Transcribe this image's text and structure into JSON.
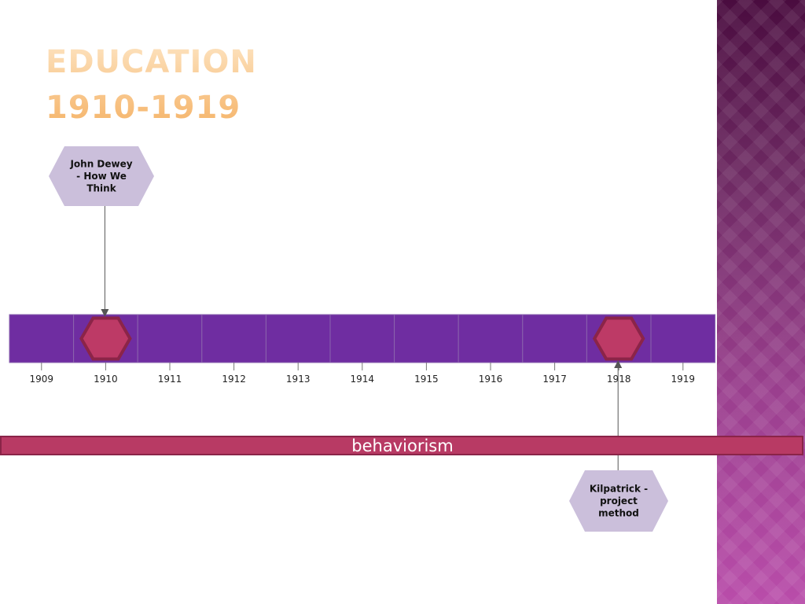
{
  "title": {
    "line1": "EDUCATION",
    "line2": "1910-1919"
  },
  "chart_data": {
    "type": "timeline",
    "years": [
      "1909",
      "1910",
      "1911",
      "1912",
      "1913",
      "1914",
      "1915",
      "1916",
      "1917",
      "1918",
      "1919"
    ],
    "events": [
      {
        "year": 1910,
        "label": [
          "John Dewey",
          "- How We",
          "Think"
        ],
        "position": "above"
      },
      {
        "year": 1918,
        "label": [
          "Kilpatrick -",
          "project",
          "method"
        ],
        "position": "below"
      }
    ],
    "band": {
      "label": "behaviorism"
    },
    "colors": {
      "bar": "#6f2da1",
      "marker_fill": "#bd3a66",
      "marker_stroke": "#8b2448",
      "callout": "#cbbfdb",
      "band": "#b83a64",
      "panel_top": "#4a0c3f",
      "panel_bottom": "#b94daa",
      "title": "#f5b266"
    }
  }
}
